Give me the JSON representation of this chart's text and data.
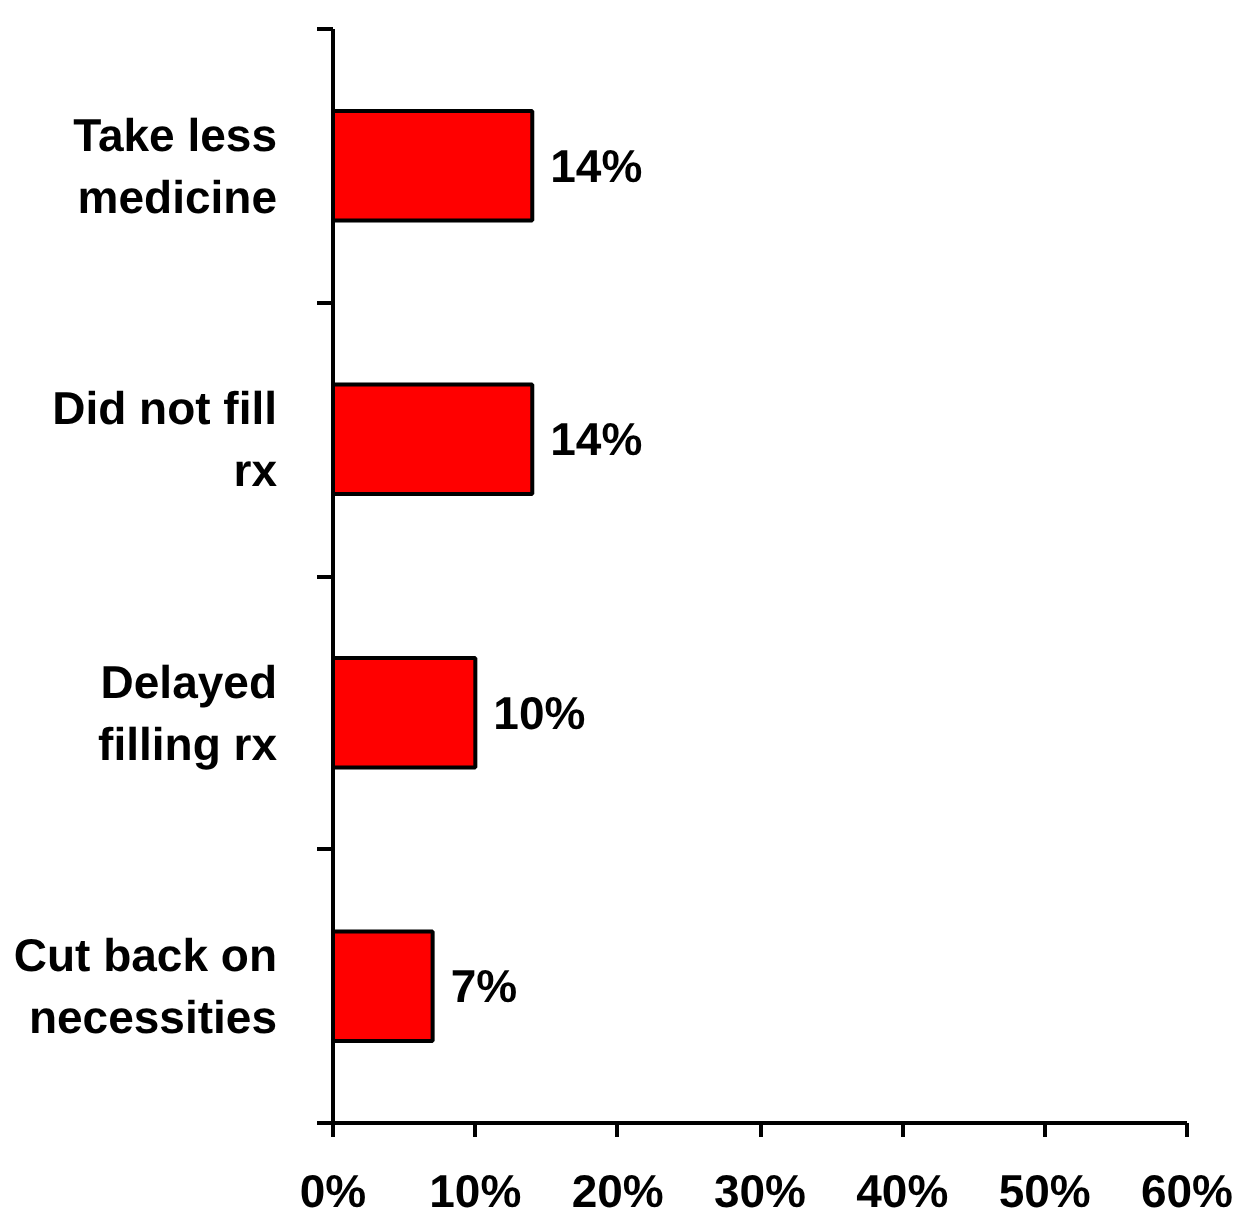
{
  "chart_data": {
    "type": "bar",
    "orientation": "horizontal",
    "categories": [
      "Take less medicine",
      "Did not fill rx",
      "Delayed filling rx",
      "Cut back on necessities"
    ],
    "values": [
      14,
      14,
      10,
      7
    ],
    "color": "#ff0000",
    "value_labels": [
      "14%",
      "14%",
      "10%",
      "7%"
    ],
    "xlim": [
      0,
      60
    ],
    "xticks": [
      {
        "value": 0,
        "label": "0%"
      },
      {
        "value": 10,
        "label": "10%"
      },
      {
        "value": 20,
        "label": "20%"
      },
      {
        "value": 30,
        "label": "30%"
      },
      {
        "value": 40,
        "label": "40%"
      },
      {
        "value": 50,
        "label": "50%"
      },
      {
        "value": 60,
        "label": "60%"
      }
    ]
  }
}
